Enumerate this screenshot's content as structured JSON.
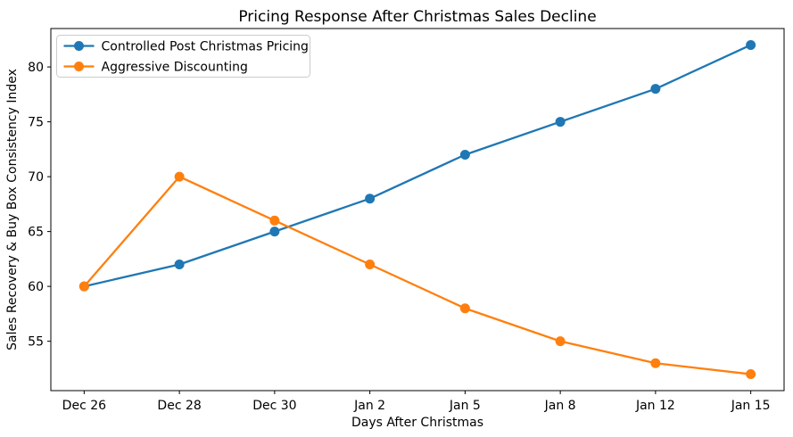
{
  "chart_data": {
    "type": "line",
    "title": "Pricing Response After Christmas Sales Decline",
    "xlabel": "Days After Christmas",
    "ylabel": "Sales Recovery & Buy Box Consistency Index",
    "categories": [
      "Dec 26",
      "Dec 28",
      "Dec 30",
      "Jan 2",
      "Jan 5",
      "Jan 8",
      "Jan 12",
      "Jan 15"
    ],
    "series": [
      {
        "name": "Controlled Post Christmas Pricing",
        "color": "#1f77b4",
        "values": [
          60,
          62,
          65,
          68,
          72,
          75,
          78,
          82
        ]
      },
      {
        "name": "Aggressive Discounting",
        "color": "#ff7f0e",
        "values": [
          60,
          70,
          66,
          62,
          58,
          55,
          53,
          52
        ]
      }
    ],
    "y_ticks": [
      55,
      60,
      65,
      70,
      75,
      80
    ],
    "ylim": [
      50.5,
      83.5
    ],
    "xlim": [
      -0.35,
      7.35
    ],
    "grid": false,
    "legend_position": "upper left",
    "marker": "circle",
    "line_width": 2.3,
    "marker_radius": 5.5,
    "spine_color": "#000000",
    "legend_border_color": "#cccccc",
    "background_color": "#ffffff"
  }
}
